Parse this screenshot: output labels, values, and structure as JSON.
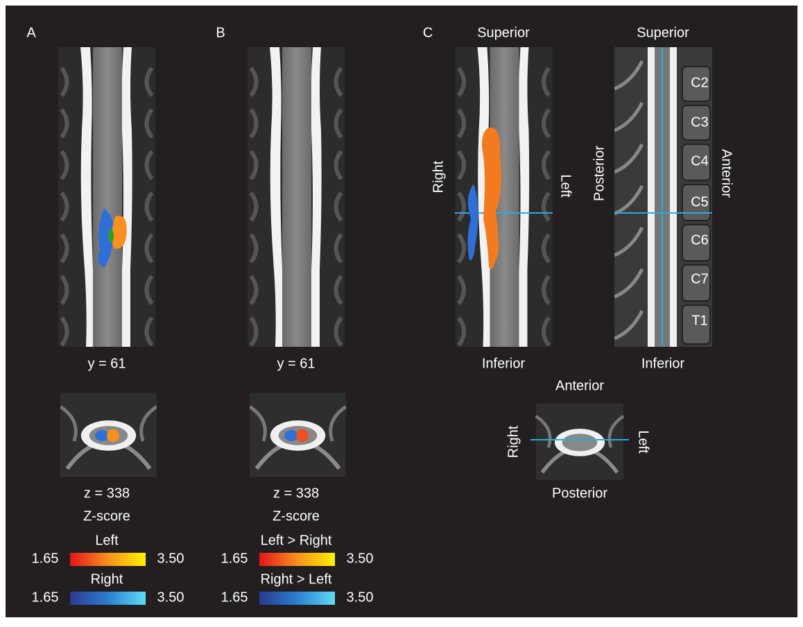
{
  "panels": [
    {
      "label": "A",
      "coronal_caption": "y = 61",
      "axial_caption": "z = 338",
      "scale_title": "Z-score",
      "scales": [
        {
          "name": "Left",
          "min": "1.65",
          "max": "3.50"
        },
        {
          "name": "Right",
          "min": "1.65",
          "max": "3.50"
        }
      ]
    },
    {
      "label": "B",
      "coronal_caption": "y = 61",
      "axial_caption": "z = 338",
      "scale_title": "Z-score",
      "scales": [
        {
          "name": "Left > Right",
          "min": "1.65",
          "max": "3.50"
        },
        {
          "name": "Right > Left",
          "min": "1.65",
          "max": "3.50"
        }
      ]
    },
    {
      "label": "C",
      "coronal": {
        "top": "Superior",
        "bottom": "Inferior",
        "left": "Right",
        "right": "Left"
      },
      "sagittal": {
        "top": "Superior",
        "bottom": "Inferior",
        "left": "Posterior",
        "right": "Anterior",
        "levels": [
          "C2",
          "C3",
          "C4",
          "C5",
          "C6",
          "C7",
          "T1"
        ]
      },
      "axial": {
        "top": "Anterior",
        "bottom": "Posterior",
        "left": "Right",
        "right": "Left"
      }
    }
  ]
}
